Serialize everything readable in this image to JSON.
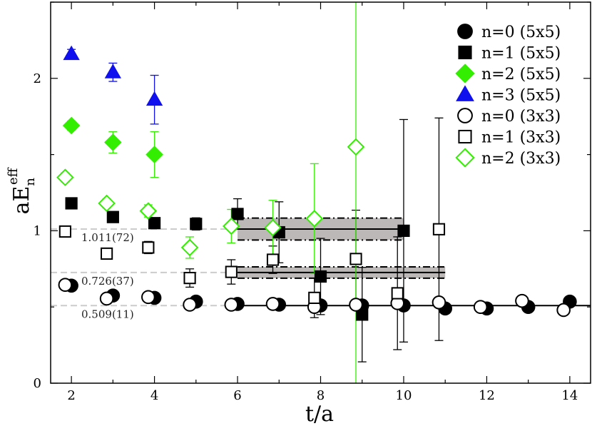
{
  "chart_data": {
    "type": "scatter",
    "title": "",
    "xlabel": "t/a",
    "ylabel": {
      "base": "aE",
      "sub": "n",
      "sup": "eff"
    },
    "xlim": [
      1.5,
      14.5
    ],
    "ylim": [
      0,
      2.5
    ],
    "xticks": [
      2,
      4,
      6,
      8,
      10,
      12,
      14
    ],
    "yticks": [
      0,
      1,
      2
    ],
    "grid": false,
    "legend_position": "top-right",
    "series": [
      {
        "name": "n=0 (5x5)",
        "marker": "circle",
        "filled": true,
        "color": "#000000",
        "points": [
          {
            "x": 2,
            "y": 0.64,
            "err": 0.01
          },
          {
            "x": 3,
            "y": 0.575,
            "err": 0.012
          },
          {
            "x": 4,
            "y": 0.56,
            "err": 0.012
          },
          {
            "x": 5,
            "y": 0.535,
            "err": 0.01
          },
          {
            "x": 6,
            "y": 0.52,
            "err": 0.01
          },
          {
            "x": 7,
            "y": 0.515,
            "err": 0.01
          },
          {
            "x": 8,
            "y": 0.51,
            "err": 0.01
          },
          {
            "x": 9,
            "y": 0.51,
            "err": 0.01
          },
          {
            "x": 10,
            "y": 0.51,
            "err": 0.01
          },
          {
            "x": 11,
            "y": 0.49,
            "err": 0.01
          },
          {
            "x": 12,
            "y": 0.49,
            "err": 0.01
          },
          {
            "x": 13,
            "y": 0.5,
            "err": 0.01
          },
          {
            "x": 14,
            "y": 0.535,
            "err": 0.01
          }
        ]
      },
      {
        "name": "n=1 (5x5)",
        "marker": "square",
        "filled": true,
        "color": "#000000",
        "points": [
          {
            "x": 2,
            "y": 1.18,
            "err": 0.02
          },
          {
            "x": 3,
            "y": 1.09,
            "err": 0.02
          },
          {
            "x": 4,
            "y": 1.05,
            "err": 0.025
          },
          {
            "x": 5,
            "y": 1.045,
            "err": 0.04
          },
          {
            "x": 6,
            "y": 1.11,
            "err": 0.1
          },
          {
            "x": 7,
            "y": 0.99,
            "err": 0.2
          },
          {
            "x": 8,
            "y": 0.7,
            "err": 0.25
          },
          {
            "x": 9,
            "y": 0.45,
            "err": 0.31
          },
          {
            "x": 10,
            "y": 1.0,
            "err": 0.73
          }
        ]
      },
      {
        "name": "n=2 (5x5)",
        "marker": "diamond",
        "filled": true,
        "color": "#33ee00",
        "points": [
          {
            "x": 2,
            "y": 1.69,
            "err": 0.03
          },
          {
            "x": 3,
            "y": 1.58,
            "err": 0.07
          },
          {
            "x": 4,
            "y": 1.5,
            "err": 0.15
          }
        ]
      },
      {
        "name": "n=3 (5x5)",
        "marker": "triangle",
        "filled": true,
        "color": "#1010ee",
        "points": [
          {
            "x": 2,
            "y": 2.16,
            "err": 0.03
          },
          {
            "x": 3,
            "y": 2.04,
            "err": 0.06
          },
          {
            "x": 4,
            "y": 1.86,
            "err": 0.16
          }
        ]
      },
      {
        "name": "n=0 (3x3)",
        "marker": "circle",
        "filled": false,
        "color": "#000000",
        "points": [
          {
            "x": 1.85,
            "y": 0.645,
            "err": 0.01
          },
          {
            "x": 2.85,
            "y": 0.555,
            "err": 0.01
          },
          {
            "x": 3.85,
            "y": 0.565,
            "err": 0.012
          },
          {
            "x": 4.85,
            "y": 0.515,
            "err": 0.012
          },
          {
            "x": 5.85,
            "y": 0.515,
            "err": 0.01
          },
          {
            "x": 6.85,
            "y": 0.52,
            "err": 0.01
          },
          {
            "x": 7.85,
            "y": 0.5,
            "err": 0.01
          },
          {
            "x": 8.85,
            "y": 0.515,
            "err": 0.01
          },
          {
            "x": 9.85,
            "y": 0.525,
            "err": 0.01
          },
          {
            "x": 10.85,
            "y": 0.53,
            "err": 0.01
          },
          {
            "x": 11.85,
            "y": 0.5,
            "err": 0.01
          },
          {
            "x": 12.85,
            "y": 0.54,
            "err": 0.015
          },
          {
            "x": 13.85,
            "y": 0.48,
            "err": 0.02
          }
        ]
      },
      {
        "name": "n=1 (3x3)",
        "marker": "square",
        "filled": false,
        "color": "#000000",
        "points": [
          {
            "x": 1.85,
            "y": 0.995,
            "err": 0.015
          },
          {
            "x": 2.85,
            "y": 0.85,
            "err": 0.02
          },
          {
            "x": 3.85,
            "y": 0.89,
            "err": 0.04
          },
          {
            "x": 4.85,
            "y": 0.69,
            "err": 0.06
          },
          {
            "x": 5.85,
            "y": 0.73,
            "err": 0.08
          },
          {
            "x": 6.85,
            "y": 0.81,
            "err": 0.09
          },
          {
            "x": 7.85,
            "y": 0.56,
            "err": 0.13
          },
          {
            "x": 8.85,
            "y": 0.815,
            "err": 0.32
          },
          {
            "x": 9.85,
            "y": 0.59,
            "err": 0.37
          },
          {
            "x": 10.85,
            "y": 1.01,
            "err": 0.73
          }
        ]
      },
      {
        "name": "n=2 (3x3)",
        "marker": "diamond",
        "filled": false,
        "color": "#33ee00",
        "points": [
          {
            "x": 1.85,
            "y": 1.35,
            "err": 0.03
          },
          {
            "x": 2.85,
            "y": 1.18,
            "err": 0.03
          },
          {
            "x": 3.85,
            "y": 1.13,
            "err": 0.04
          },
          {
            "x": 4.85,
            "y": 0.89,
            "err": 0.07
          },
          {
            "x": 5.85,
            "y": 1.03,
            "err": 0.11
          },
          {
            "x": 6.85,
            "y": 1.02,
            "err": 0.18
          },
          {
            "x": 7.85,
            "y": 1.08,
            "err": 0.36
          },
          {
            "x": 8.85,
            "y": 1.55,
            "err": 2.5
          }
        ]
      }
    ],
    "fits": [
      {
        "label": "1.011(72)",
        "value": 1.011,
        "err": 0.072,
        "x_range": [
          6,
          10
        ]
      },
      {
        "label": "0.726(37)",
        "value": 0.726,
        "err": 0.037,
        "x_range": [
          6,
          11
        ]
      },
      {
        "label": "0.509(11)",
        "value": 0.509,
        "err": 0.011,
        "x_range": [
          6,
          14.5
        ]
      }
    ]
  }
}
